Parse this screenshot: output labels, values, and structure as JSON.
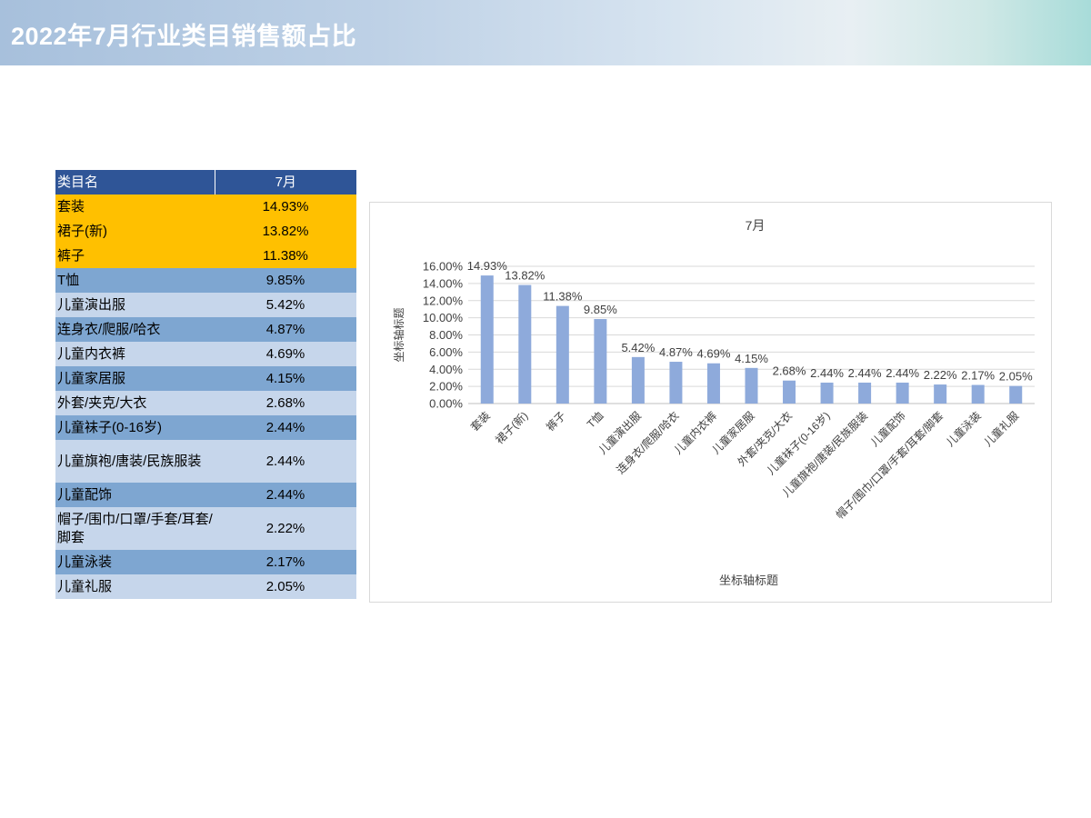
{
  "page_title": "2022年7月行业类目销售额占比",
  "table": {
    "header_name": "类目名",
    "header_month": "7月",
    "rows": [
      {
        "name": "套装",
        "value": "14.93%"
      },
      {
        "name": "裙子(新)",
        "value": "13.82%"
      },
      {
        "name": "裤子",
        "value": "11.38%"
      },
      {
        "name": "T恤",
        "value": "9.85%"
      },
      {
        "name": "儿童演出服",
        "value": "5.42%"
      },
      {
        "name": "连身衣/爬服/哈衣",
        "value": "4.87%"
      },
      {
        "name": "儿童内衣裤",
        "value": "4.69%"
      },
      {
        "name": "儿童家居服",
        "value": "4.15%"
      },
      {
        "name": "外套/夹克/大衣",
        "value": "2.68%"
      },
      {
        "name": "儿童袜子(0-16岁)",
        "value": "2.44%"
      },
      {
        "name": "儿童旗袍/唐装/民族服装",
        "value": "2.44%"
      },
      {
        "name": "儿童配饰",
        "value": "2.44%"
      },
      {
        "name": "帽子/围巾/口罩/手套/耳套/脚套",
        "value": "2.22%"
      },
      {
        "name": "儿童泳装",
        "value": "2.17%"
      },
      {
        "name": "儿童礼服",
        "value": "2.05%"
      }
    ]
  },
  "chart_data": {
    "type": "bar",
    "title": "7月",
    "xlabel": "坐标轴标题",
    "ylabel": "坐标轴标题",
    "ylim": [
      0,
      16
    ],
    "yticks": [
      0,
      2,
      4,
      6,
      8,
      10,
      12,
      14,
      16
    ],
    "ytick_labels": [
      "0.00%",
      "2.00%",
      "4.00%",
      "6.00%",
      "8.00%",
      "10.00%",
      "12.00%",
      "14.00%",
      "16.00%"
    ],
    "categories": [
      "套装",
      "裙子(新)",
      "裤子",
      "T恤",
      "儿童演出服",
      "连身衣/爬服/哈衣",
      "儿童内衣裤",
      "儿童家居服",
      "外套/夹克/大衣",
      "儿童袜子(0-16岁)",
      "儿童旗袍/唐装/民族服装",
      "儿童配饰",
      "帽子/围巾/口罩/手套/耳套/脚套",
      "儿童泳装",
      "儿童礼服"
    ],
    "values": [
      14.93,
      13.82,
      11.38,
      9.85,
      5.42,
      4.87,
      4.69,
      4.15,
      2.68,
      2.44,
      2.44,
      2.44,
      2.22,
      2.17,
      2.05
    ],
    "data_labels": [
      "14.93%",
      "13.82%",
      "11.38%",
      "9.85%",
      "5.42%",
      "4.87%",
      "4.69%",
      "4.15%",
      "2.68%",
      "2.44%",
      "2.44%",
      "2.44%",
      "2.22%",
      "2.17%",
      "2.05%"
    ],
    "grid": true,
    "bar_color": "#8eaadb"
  }
}
